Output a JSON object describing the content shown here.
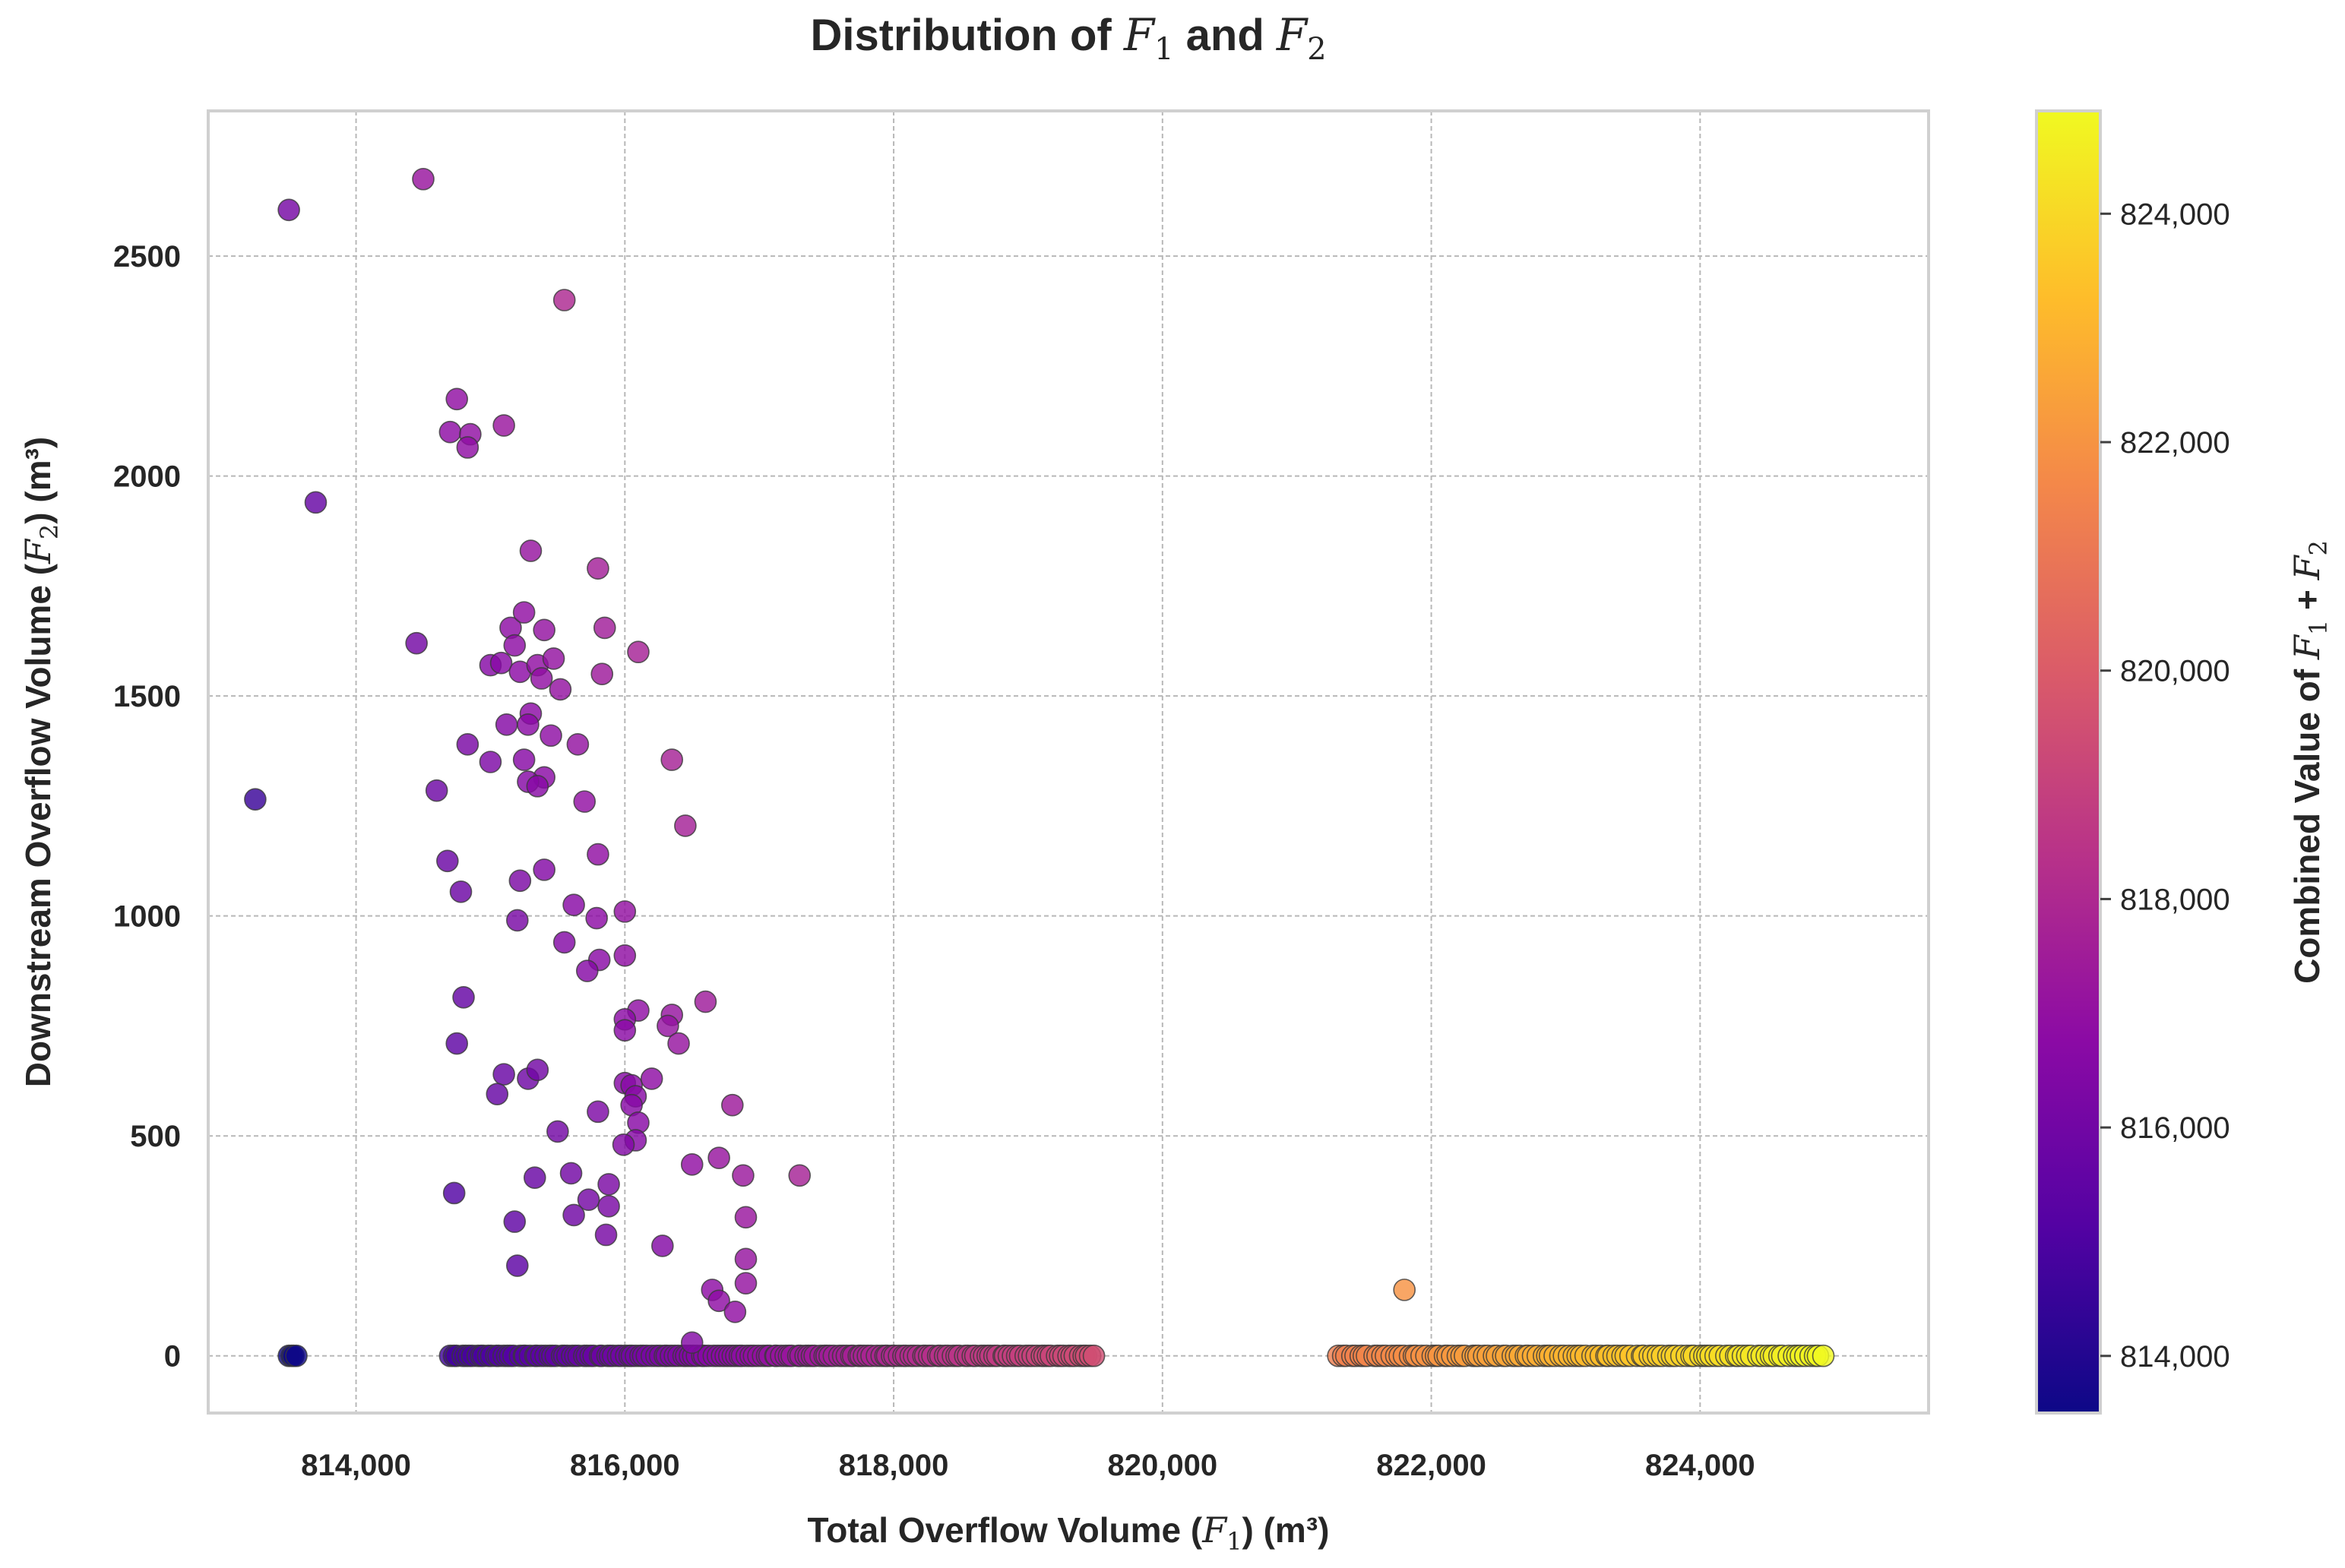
{
  "chart_data": {
    "type": "scatter",
    "title": {
      "prefix": "Distribution of ",
      "var1": "F",
      "sub1": "1",
      "mid": " and ",
      "var2": "F",
      "sub2": "2"
    },
    "xlabel": {
      "prefix": "Total Overflow Volume (",
      "var": "F",
      "sub": "1",
      "suffix": ") (m³)"
    },
    "ylabel": {
      "prefix": "Downstream Overflow Volume (",
      "var": "F",
      "sub": "2",
      "suffix": ") (m³)"
    },
    "colorbar_label": {
      "prefix": "Combined Value of ",
      "var1": "F",
      "sub1": "1",
      "mid": " + ",
      "var2": "F",
      "sub2": "2"
    },
    "xlim": [
      812900,
      825700
    ],
    "ylim": [
      -130,
      2830
    ],
    "x_ticks": [
      {
        "value": 814000,
        "label": "814,000"
      },
      {
        "value": 816000,
        "label": "816,000"
      },
      {
        "value": 818000,
        "label": "818,000"
      },
      {
        "value": 820000,
        "label": "820,000"
      },
      {
        "value": 822000,
        "label": "822,000"
      },
      {
        "value": 824000,
        "label": "824,000"
      }
    ],
    "y_ticks": [
      {
        "value": 0,
        "label": "0"
      },
      {
        "value": 500,
        "label": "500"
      },
      {
        "value": 1000,
        "label": "1000"
      },
      {
        "value": 1500,
        "label": "1500"
      },
      {
        "value": 2000,
        "label": "2000"
      },
      {
        "value": 2500,
        "label": "2500"
      }
    ],
    "colorbar_range": [
      813500,
      824900
    ],
    "colorbar_ticks": [
      {
        "value": 814000,
        "label": "814,000"
      },
      {
        "value": 816000,
        "label": "816,000"
      },
      {
        "value": 818000,
        "label": "818,000"
      },
      {
        "value": 820000,
        "label": "820,000"
      },
      {
        "value": 822000,
        "label": "822,000"
      },
      {
        "value": 824000,
        "label": "824,000"
      }
    ],
    "colormap": "plasma",
    "colormap_stops": [
      "#0d0887",
      "#5302a3",
      "#8b0aa5",
      "#b83289",
      "#db5c68",
      "#f48849",
      "#febd2a",
      "#f0f921"
    ],
    "grid": true,
    "points_scattered": [
      [
        813500,
        2605
      ],
      [
        814500,
        2675
      ],
      [
        815550,
        2400
      ],
      [
        813700,
        1940
      ],
      [
        814750,
        2175
      ],
      [
        814700,
        2100
      ],
      [
        814850,
        2095
      ],
      [
        814830,
        2065
      ],
      [
        815100,
        2115
      ],
      [
        815300,
        1830
      ],
      [
        815800,
        1790
      ],
      [
        814450,
        1620
      ],
      [
        815150,
        1655
      ],
      [
        815250,
        1690
      ],
      [
        815400,
        1650
      ],
      [
        815850,
        1655
      ],
      [
        816100,
        1600
      ],
      [
        815180,
        1615
      ],
      [
        815000,
        1570
      ],
      [
        815080,
        1575
      ],
      [
        815220,
        1555
      ],
      [
        815350,
        1570
      ],
      [
        815470,
        1585
      ],
      [
        815380,
        1540
      ],
      [
        815520,
        1515
      ],
      [
        815830,
        1550
      ],
      [
        815300,
        1460
      ],
      [
        815280,
        1435
      ],
      [
        815120,
        1435
      ],
      [
        815450,
        1410
      ],
      [
        814830,
        1390
      ],
      [
        815650,
        1390
      ],
      [
        815000,
        1350
      ],
      [
        815250,
        1355
      ],
      [
        815400,
        1315
      ],
      [
        815280,
        1305
      ],
      [
        815350,
        1295
      ],
      [
        816350,
        1355
      ],
      [
        813250,
        1265
      ],
      [
        814600,
        1285
      ],
      [
        815700,
        1260
      ],
      [
        816450,
        1205
      ],
      [
        814680,
        1125
      ],
      [
        815800,
        1140
      ],
      [
        815400,
        1105
      ],
      [
        815220,
        1080
      ],
      [
        814780,
        1055
      ],
      [
        815620,
        1025
      ],
      [
        815200,
        990
      ],
      [
        815790,
        995
      ],
      [
        816000,
        1010
      ],
      [
        815550,
        940
      ],
      [
        816000,
        910
      ],
      [
        815810,
        900
      ],
      [
        815720,
        875
      ],
      [
        814800,
        815
      ],
      [
        816600,
        805
      ],
      [
        816100,
        785
      ],
      [
        816000,
        765
      ],
      [
        816350,
        775
      ],
      [
        816320,
        750
      ],
      [
        816000,
        740
      ],
      [
        816400,
        710
      ],
      [
        814750,
        710
      ],
      [
        815100,
        640
      ],
      [
        815280,
        630
      ],
      [
        815350,
        650
      ],
      [
        816000,
        620
      ],
      [
        816050,
        615
      ],
      [
        816200,
        630
      ],
      [
        816080,
        590
      ],
      [
        816050,
        570
      ],
      [
        815050,
        595
      ],
      [
        816800,
        570
      ],
      [
        815800,
        555
      ],
      [
        816100,
        530
      ],
      [
        815500,
        510
      ],
      [
        816080,
        490
      ],
      [
        815990,
        480
      ],
      [
        816500,
        435
      ],
      [
        816700,
        450
      ],
      [
        816880,
        410
      ],
      [
        817300,
        410
      ],
      [
        815600,
        415
      ],
      [
        815330,
        405
      ],
      [
        815880,
        390
      ],
      [
        814730,
        370
      ],
      [
        815730,
        355
      ],
      [
        815880,
        340
      ],
      [
        815620,
        320
      ],
      [
        816900,
        315
      ],
      [
        815180,
        305
      ],
      [
        815860,
        275
      ],
      [
        816280,
        250
      ],
      [
        816900,
        220
      ],
      [
        815200,
        205
      ],
      [
        816900,
        165
      ],
      [
        816650,
        150
      ],
      [
        816700,
        125
      ],
      [
        816820,
        100
      ],
      [
        816500,
        30
      ],
      [
        821800,
        150
      ]
    ],
    "points_zero_clusters": [
      {
        "x_start": 813500,
        "x_end": 813560,
        "count": 4,
        "y": 0
      },
      {
        "x_start": 814700,
        "x_end": 819490,
        "count": 170,
        "y": 0
      },
      {
        "x_start": 821300,
        "x_end": 824920,
        "count": 110,
        "y": 0
      }
    ]
  }
}
